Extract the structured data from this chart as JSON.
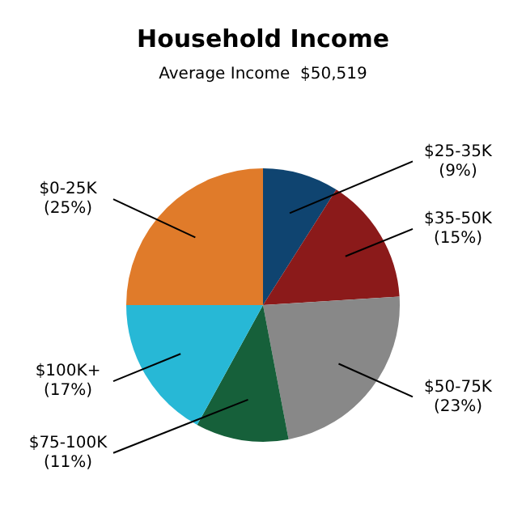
{
  "chart_data": {
    "type": "pie",
    "title": "Household Income",
    "subtitle": "Average Income  $50,519",
    "categories": [
      "$0-25K",
      "$25-35K",
      "$35-50K",
      "$50-75K",
      "$75-100K",
      "$100K+"
    ],
    "values": [
      25,
      9,
      15,
      23,
      11,
      17
    ],
    "value_labels": [
      "(25%)",
      "(9%)",
      "(15%)",
      "(23%)",
      "(11%)",
      "(17%)"
    ],
    "colors": [
      "#e07b2a",
      "#0f4470",
      "#8b1a1a",
      "#888888",
      "#16603a",
      "#27b8d6"
    ],
    "legend": false
  }
}
